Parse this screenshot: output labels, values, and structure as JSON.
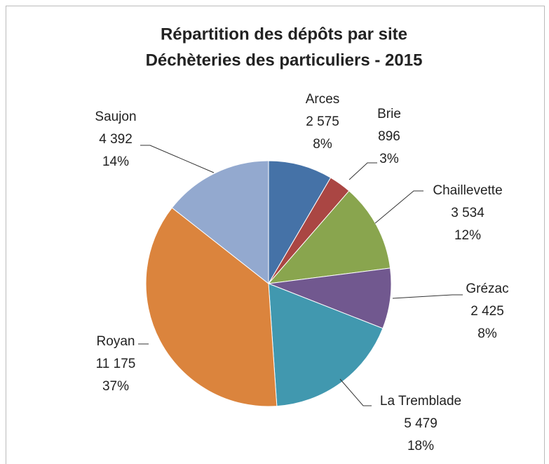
{
  "chart_data": {
    "type": "pie",
    "title": [
      "Répartition des dépôts par site",
      "Déchèteries des particuliers - 2015"
    ],
    "categories": [
      "Arces",
      "Brie",
      "Chaillevette",
      "Grézac",
      "La Tremblade",
      "Royan",
      "Saujon"
    ],
    "values": [
      2575,
      896,
      3534,
      2425,
      5479,
      11175,
      4392
    ],
    "value_labels": [
      "2 575",
      "896",
      "3 534",
      "2 425",
      "5 479",
      "11 175",
      "4 392"
    ],
    "percent_labels": [
      "8%",
      "3%",
      "12%",
      "8%",
      "18%",
      "37%",
      "14%"
    ],
    "colors": [
      "#4572a7",
      "#aa4643",
      "#89a54e",
      "#71588f",
      "#4198af",
      "#db843d",
      "#93a9cf"
    ]
  }
}
